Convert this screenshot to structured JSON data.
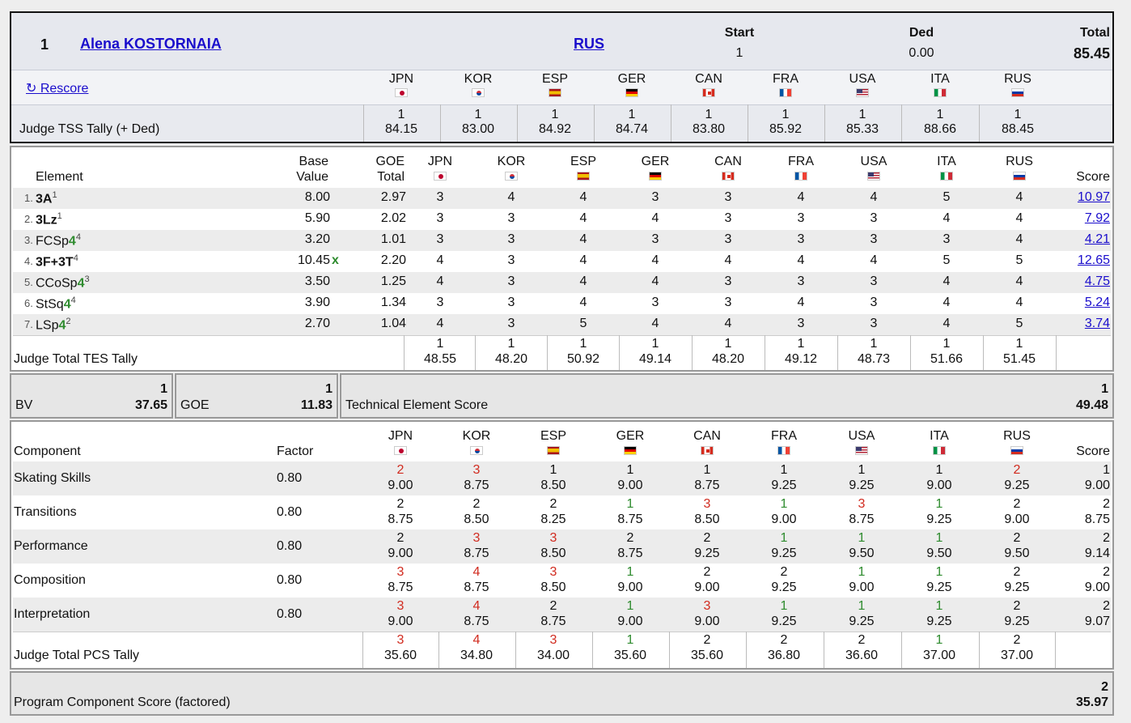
{
  "header": {
    "rank": "1",
    "skater": "Alena KOSTORNAIA",
    "nation": "RUS",
    "start_label": "Start",
    "start_value": "1",
    "ded_label": "Ded",
    "ded_value": "0.00",
    "total_label": "Total",
    "total_value": "85.45",
    "rescore_label": "↻ Rescore",
    "tally_label": "Judge TSS Tally (+ Ded)",
    "judges": [
      {
        "code": "JPN",
        "rank": "1",
        "score": "84.15"
      },
      {
        "code": "KOR",
        "rank": "1",
        "score": "83.00"
      },
      {
        "code": "ESP",
        "rank": "1",
        "score": "84.92"
      },
      {
        "code": "GER",
        "rank": "1",
        "score": "84.74"
      },
      {
        "code": "CAN",
        "rank": "1",
        "score": "83.80"
      },
      {
        "code": "FRA",
        "rank": "1",
        "score": "85.92"
      },
      {
        "code": "USA",
        "rank": "1",
        "score": "85.33"
      },
      {
        "code": "ITA",
        "rank": "1",
        "score": "88.66"
      },
      {
        "code": "RUS",
        "rank": "1",
        "score": "88.45"
      }
    ]
  },
  "elements": {
    "col_element": "Element",
    "col_base1": "Base",
    "col_base2": "Value",
    "col_goe1": "GOE",
    "col_goe2": "Total",
    "col_score": "Score",
    "judge_codes": [
      "JPN",
      "KOR",
      "ESP",
      "GER",
      "CAN",
      "FRA",
      "USA",
      "ITA",
      "RUS"
    ],
    "rows": [
      {
        "num": "1.",
        "name": "3A",
        "level": "",
        "sup": "1",
        "bold": true,
        "bv": "8.00",
        "x": "",
        "goe": "2.97",
        "marks": [
          "3",
          "4",
          "4",
          "3",
          "3",
          "4",
          "4",
          "5",
          "4"
        ],
        "score": "10.97"
      },
      {
        "num": "2.",
        "name": "3Lz",
        "level": "",
        "sup": "1",
        "bold": true,
        "bv": "5.90",
        "x": "",
        "goe": "2.02",
        "marks": [
          "3",
          "3",
          "4",
          "4",
          "3",
          "3",
          "3",
          "4",
          "4"
        ],
        "score": "7.92"
      },
      {
        "num": "3.",
        "name": "FCSp",
        "level": "4",
        "sup": "4",
        "bold": false,
        "bv": "3.20",
        "x": "",
        "goe": "1.01",
        "marks": [
          "3",
          "3",
          "4",
          "3",
          "3",
          "3",
          "3",
          "3",
          "4"
        ],
        "score": "4.21"
      },
      {
        "num": "4.",
        "name": "3F+3T",
        "level": "",
        "sup": "4",
        "bold": true,
        "bv": "10.45",
        "x": "x",
        "goe": "2.20",
        "marks": [
          "4",
          "3",
          "4",
          "4",
          "4",
          "4",
          "4",
          "5",
          "5"
        ],
        "score": "12.65"
      },
      {
        "num": "5.",
        "name": "CCoSp",
        "level": "4",
        "sup": "3",
        "bold": false,
        "bv": "3.50",
        "x": "",
        "goe": "1.25",
        "marks": [
          "4",
          "3",
          "4",
          "4",
          "3",
          "3",
          "3",
          "4",
          "4"
        ],
        "score": "4.75"
      },
      {
        "num": "6.",
        "name": "StSq",
        "level": "4",
        "sup": "4",
        "bold": false,
        "bv": "3.90",
        "x": "",
        "goe": "1.34",
        "marks": [
          "3",
          "3",
          "4",
          "3",
          "3",
          "4",
          "3",
          "4",
          "4"
        ],
        "score": "5.24"
      },
      {
        "num": "7.",
        "name": "LSp",
        "level": "4",
        "sup": "2",
        "bold": false,
        "bv": "2.70",
        "x": "",
        "goe": "1.04",
        "marks": [
          "4",
          "3",
          "5",
          "4",
          "4",
          "3",
          "3",
          "4",
          "5"
        ],
        "score": "3.74"
      }
    ],
    "tally_label": "Judge Total TES Tally",
    "tally": [
      {
        "rank": "1",
        "score": "48.55"
      },
      {
        "rank": "1",
        "score": "48.20"
      },
      {
        "rank": "1",
        "score": "50.92"
      },
      {
        "rank": "1",
        "score": "49.14"
      },
      {
        "rank": "1",
        "score": "48.20"
      },
      {
        "rank": "1",
        "score": "49.12"
      },
      {
        "rank": "1",
        "score": "48.73"
      },
      {
        "rank": "1",
        "score": "51.66"
      },
      {
        "rank": "1",
        "score": "51.45"
      }
    ]
  },
  "summary": {
    "bv_label": "BV",
    "bv_rank": "1",
    "bv_value": "37.65",
    "goe_label": "GOE",
    "goe_rank": "1",
    "goe_value": "11.83",
    "tes_label": "Technical Element Score",
    "tes_rank": "1",
    "tes_value": "49.48"
  },
  "components": {
    "col_component": "Component",
    "col_factor": "Factor",
    "col_score": "Score",
    "judge_codes": [
      "JPN",
      "KOR",
      "ESP",
      "GER",
      "CAN",
      "FRA",
      "USA",
      "ITA",
      "RUS"
    ],
    "rows": [
      {
        "name": "Skating Skills",
        "factor": "0.80",
        "ranks": [
          "2",
          "3",
          "1",
          "1",
          "1",
          "1",
          "1",
          "1",
          "2"
        ],
        "rank_colors": [
          "red",
          "red",
          "",
          "",
          "",
          "",
          "",
          "",
          "red"
        ],
        "marks": [
          "9.00",
          "8.75",
          "8.50",
          "9.00",
          "8.75",
          "9.25",
          "9.25",
          "9.00",
          "9.25"
        ],
        "score_rank": "1",
        "score": "9.00"
      },
      {
        "name": "Transitions",
        "factor": "0.80",
        "ranks": [
          "2",
          "2",
          "2",
          "1",
          "3",
          "1",
          "3",
          "1",
          "2"
        ],
        "rank_colors": [
          "",
          "",
          "",
          "green",
          "red",
          "green",
          "red",
          "green",
          ""
        ],
        "marks": [
          "8.75",
          "8.50",
          "8.25",
          "8.75",
          "8.50",
          "9.00",
          "8.75",
          "9.25",
          "9.00"
        ],
        "score_rank": "2",
        "score": "8.75"
      },
      {
        "name": "Performance",
        "factor": "0.80",
        "ranks": [
          "2",
          "3",
          "3",
          "2",
          "2",
          "1",
          "1",
          "1",
          "2"
        ],
        "rank_colors": [
          "",
          "red",
          "red",
          "",
          "",
          "green",
          "green",
          "green",
          ""
        ],
        "marks": [
          "9.00",
          "8.75",
          "8.50",
          "8.75",
          "9.25",
          "9.25",
          "9.50",
          "9.50",
          "9.50"
        ],
        "score_rank": "2",
        "score": "9.14"
      },
      {
        "name": "Composition",
        "factor": "0.80",
        "ranks": [
          "3",
          "4",
          "3",
          "1",
          "2",
          "2",
          "1",
          "1",
          "2"
        ],
        "rank_colors": [
          "red",
          "red",
          "red",
          "green",
          "",
          "",
          "green",
          "green",
          ""
        ],
        "marks": [
          "8.75",
          "8.75",
          "8.50",
          "9.00",
          "9.00",
          "9.25",
          "9.00",
          "9.25",
          "9.25"
        ],
        "score_rank": "2",
        "score": "9.00"
      },
      {
        "name": "Interpretation",
        "factor": "0.80",
        "ranks": [
          "3",
          "4",
          "2",
          "1",
          "3",
          "1",
          "1",
          "1",
          "2"
        ],
        "rank_colors": [
          "red",
          "red",
          "",
          "green",
          "red",
          "green",
          "green",
          "green",
          ""
        ],
        "marks": [
          "9.00",
          "8.75",
          "8.75",
          "9.00",
          "9.00",
          "9.25",
          "9.25",
          "9.25",
          "9.25"
        ],
        "score_rank": "2",
        "score": "9.07"
      }
    ],
    "tally_label": "Judge Total PCS Tally",
    "tally": [
      {
        "rank": "3",
        "color": "red",
        "score": "35.60"
      },
      {
        "rank": "4",
        "color": "red",
        "score": "34.80"
      },
      {
        "rank": "3",
        "color": "red",
        "score": "34.00"
      },
      {
        "rank": "1",
        "color": "green",
        "score": "35.60"
      },
      {
        "rank": "2",
        "color": "",
        "score": "35.60"
      },
      {
        "rank": "2",
        "color": "",
        "score": "36.80"
      },
      {
        "rank": "2",
        "color": "",
        "score": "36.60"
      },
      {
        "rank": "1",
        "color": "green",
        "score": "37.00"
      },
      {
        "rank": "2",
        "color": "",
        "score": "37.00"
      }
    ]
  },
  "pcs": {
    "label": "Program Component Score (factored)",
    "rank": "2",
    "value": "35.97"
  },
  "flags": {
    "JPN": "jp-flag-icon",
    "KOR": "kr-flag-icon",
    "ESP": "es-flag-icon",
    "GER": "de-flag-icon",
    "CAN": "ca-flag-icon",
    "FRA": "fr-flag-icon",
    "USA": "us-flag-icon",
    "ITA": "it-flag-icon",
    "RUS": "ru-flag-icon"
  }
}
